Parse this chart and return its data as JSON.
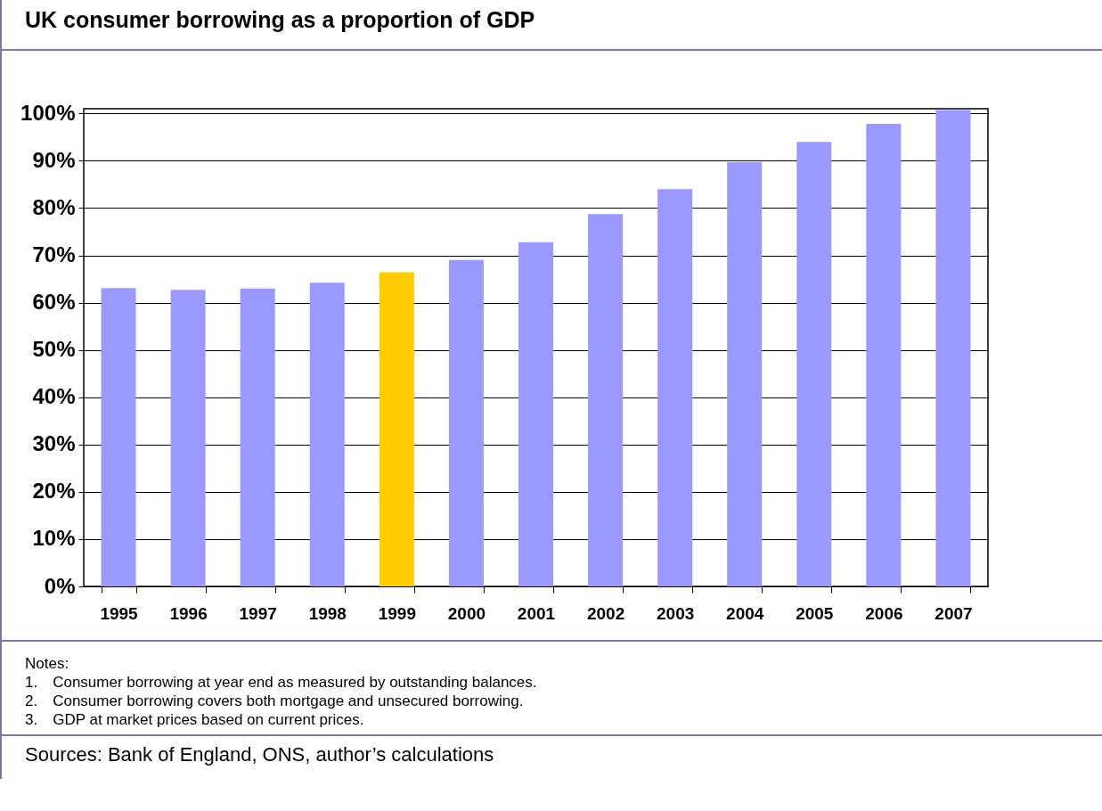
{
  "chart_data": {
    "type": "bar",
    "title": "UK consumer borrowing as a proportion of GDP",
    "categories": [
      "1995",
      "1996",
      "1997",
      "1998",
      "1999",
      "2000",
      "2001",
      "2002",
      "2003",
      "2004",
      "2005",
      "2006",
      "2007"
    ],
    "values": [
      63.1,
      62.7,
      63.0,
      64.2,
      66.4,
      69.0,
      72.8,
      78.7,
      84.0,
      89.7,
      94.0,
      97.8,
      100.7
    ],
    "colors": [
      "#9999ff",
      "#9999ff",
      "#9999ff",
      "#9999ff",
      "#ffcc00",
      "#9999ff",
      "#9999ff",
      "#9999ff",
      "#9999ff",
      "#9999ff",
      "#9999ff",
      "#9999ff",
      "#9999ff"
    ],
    "ylim": [
      0,
      101
    ],
    "yticks": [
      {
        "value": 0,
        "label": "0%"
      },
      {
        "value": 10,
        "label": "10%"
      },
      {
        "value": 20,
        "label": "20%"
      },
      {
        "value": 30,
        "label": "30%"
      },
      {
        "value": 40,
        "label": "40%"
      },
      {
        "value": 50,
        "label": "50%"
      },
      {
        "value": 60,
        "label": "60%"
      },
      {
        "value": 70,
        "label": "70%"
      },
      {
        "value": 80,
        "label": "80%"
      },
      {
        "value": 90,
        "label": "90%"
      },
      {
        "value": 100,
        "label": "100%"
      }
    ],
    "grid": "y",
    "annotations": [
      "Notes:",
      "1. Consumer borrowing at year end as measured by outstanding balances.",
      "2. Consumer borrowing covers both mortgage and unsecured borrowing.",
      "3. GDP at market prices based on current prices.",
      "Sources:  Bank of England, ONS, author’s calculations"
    ]
  }
}
